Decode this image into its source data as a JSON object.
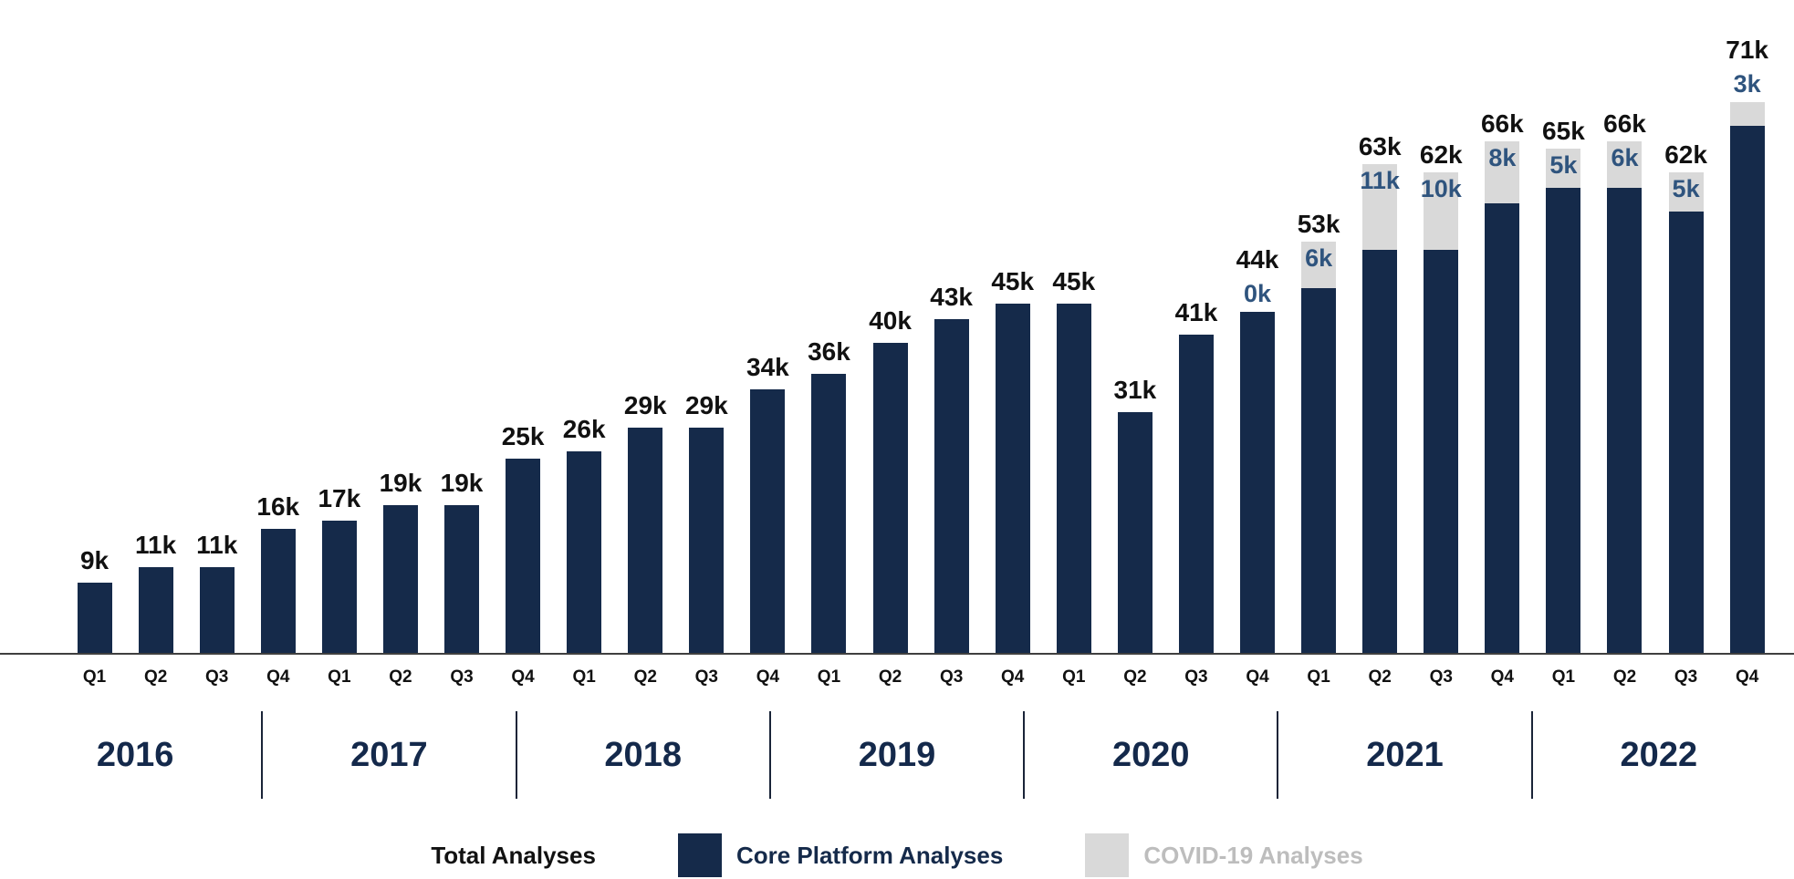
{
  "chart_data": {
    "type": "bar",
    "stacked": true,
    "title": "",
    "xlabel": "",
    "ylabel": "",
    "unit": "k (thousands of analyses)",
    "grid": false,
    "legend_position": "bottom",
    "ylim": [
      0,
      71
    ],
    "years": [
      "2016",
      "2017",
      "2018",
      "2019",
      "2020",
      "2021",
      "2022"
    ],
    "quarters": [
      "Q1",
      "Q2",
      "Q3",
      "Q4"
    ],
    "totals_k": [
      9,
      11,
      11,
      16,
      17,
      19,
      19,
      25,
      26,
      29,
      29,
      34,
      36,
      40,
      43,
      45,
      45,
      31,
      41,
      44,
      53,
      63,
      62,
      66,
      65,
      66,
      62,
      71
    ],
    "total_labels": [
      "9k",
      "11k",
      "11k",
      "16k",
      "17k",
      "19k",
      "19k",
      "25k",
      "26k",
      "29k",
      "29k",
      "34k",
      "36k",
      "40k",
      "43k",
      "45k",
      "45k",
      "31k",
      "41k",
      "44k",
      "53k",
      "63k",
      "62k",
      "66k",
      "65k",
      "66k",
      "62k",
      "71k"
    ],
    "covid_labels": [
      null,
      null,
      null,
      null,
      null,
      null,
      null,
      null,
      null,
      null,
      null,
      null,
      null,
      null,
      null,
      null,
      null,
      null,
      null,
      "0k",
      "6k",
      "11k",
      "10k",
      "8k",
      "5k",
      "6k",
      "5k",
      "3k"
    ],
    "series": [
      {
        "name": "Core Platform Analyses",
        "color": "#152a4a",
        "values_k": [
          9,
          11,
          11,
          16,
          17,
          19,
          19,
          25,
          26,
          29,
          29,
          34,
          36,
          40,
          43,
          45,
          45,
          31,
          41,
          44,
          47,
          52,
          52,
          58,
          60,
          60,
          57,
          68
        ]
      },
      {
        "name": "COVID-19 Analyses",
        "color": "#d9d9d9",
        "values_k": [
          0,
          0,
          0,
          0,
          0,
          0,
          0,
          0,
          0,
          0,
          0,
          0,
          0,
          0,
          0,
          0,
          0,
          0,
          0,
          0,
          6,
          11,
          10,
          8,
          5,
          6,
          5,
          3
        ]
      }
    ]
  },
  "legend": {
    "total_label": "Total Analyses",
    "core_label": "Core Platform Analyses",
    "covid_label": "COVID-19 Analyses"
  },
  "colors": {
    "core_bar": "#152a4a",
    "covid_bar": "#d9d9d9",
    "covid_value_text": "#2f547e",
    "total_value_text": "#111111",
    "year_text": "#14294b",
    "covid_legend_text": "#bdbdbd"
  }
}
